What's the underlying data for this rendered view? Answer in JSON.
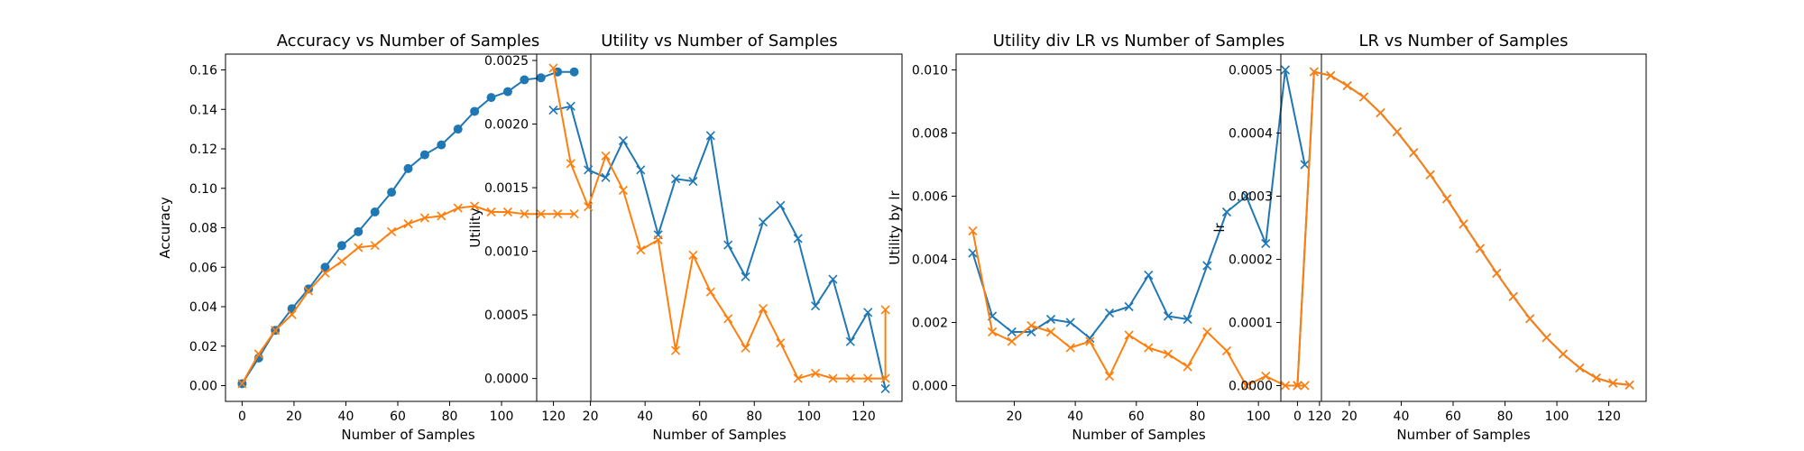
{
  "colors": {
    "blue": "#1f77b4",
    "orange": "#ff7f0e"
  },
  "chart_data": [
    {
      "type": "line",
      "title": "Accuracy vs Number of Samples",
      "xlabel": "Number of Samples",
      "ylabel": "Accuracy",
      "xlim": [
        -6.4,
        134.4
      ],
      "ylim": [
        -0.008,
        0.168
      ],
      "xticks": [
        0,
        20,
        40,
        60,
        80,
        100,
        120
      ],
      "yticks": [
        0.0,
        0.02,
        0.04,
        0.06,
        0.08,
        0.1,
        0.12,
        0.14,
        0.16
      ],
      "ytick_decimals": 2,
      "grid": false,
      "series": [
        {
          "color": "#1f77b4",
          "marker": "o",
          "x": [
            0,
            6.4,
            12.8,
            19.2,
            25.6,
            32,
            38.4,
            44.8,
            51.2,
            57.6,
            64,
            70.4,
            76.8,
            83.2,
            89.6,
            96,
            102.4,
            108.8,
            115.2,
            121.6,
            128
          ],
          "y": [
            0.001,
            0.014,
            0.028,
            0.039,
            0.049,
            0.06,
            0.071,
            0.078,
            0.088,
            0.098,
            0.11,
            0.117,
            0.122,
            0.13,
            0.139,
            0.146,
            0.149,
            0.155,
            0.156,
            0.159,
            0.159
          ]
        },
        {
          "color": "#ff7f0e",
          "marker": "x",
          "x": [
            0,
            6.4,
            12.8,
            19.2,
            25.6,
            32,
            38.4,
            44.8,
            51.2,
            57.6,
            64,
            70.4,
            76.8,
            83.2,
            89.6,
            96,
            102.4,
            108.8,
            115.2,
            121.6,
            128
          ],
          "y": [
            0.001,
            0.016,
            0.028,
            0.036,
            0.048,
            0.057,
            0.063,
            0.07,
            0.071,
            0.078,
            0.082,
            0.085,
            0.086,
            0.09,
            0.091,
            0.088,
            0.088,
            0.087,
            0.087,
            0.087,
            0.087
          ]
        }
      ]
    },
    {
      "type": "line",
      "title": "Utility vs Number of Samples",
      "xlabel": "Number of Samples",
      "ylabel": "Utility",
      "xlim": [
        0.32,
        134.08
      ],
      "ylim": [
        -0.00018,
        0.00255
      ],
      "xticks": [
        20,
        40,
        60,
        80,
        100,
        120
      ],
      "yticks": [
        0.0,
        0.0005,
        0.001,
        0.0015,
        0.002,
        0.0025
      ],
      "ytick_decimals": 4,
      "grid": false,
      "series": [
        {
          "color": "#1f77b4",
          "marker": "x",
          "x": [
            6.4,
            12.8,
            19.2,
            25.6,
            32,
            38.4,
            44.8,
            51.2,
            57.6,
            64,
            70.4,
            76.8,
            83.2,
            89.6,
            96,
            102.4,
            108.8,
            115.2,
            121.6,
            128
          ],
          "y": [
            0.00211,
            0.00214,
            0.00164,
            0.00158,
            0.00187,
            0.00164,
            0.00113,
            0.00157,
            0.00155,
            0.00191,
            0.00105,
            0.0008,
            0.00123,
            0.00136,
            0.0011,
            0.00057,
            0.00078,
            0.00029,
            0.00052,
            -8e-05
          ]
        },
        {
          "color": "#ff7f0e",
          "marker": "x",
          "x": [
            6.4,
            12.8,
            19.2,
            25.6,
            32,
            38.4,
            44.8,
            51.2,
            57.6,
            64,
            70.4,
            76.8,
            83.2,
            89.6,
            96,
            102.4,
            108.8,
            115.2,
            121.6,
            128,
            128
          ],
          "y": [
            0.00244,
            0.00169,
            0.00135,
            0.00175,
            0.00148,
            0.00101,
            0.00109,
            0.00022,
            0.00097,
            0.00068,
            0.00047,
            0.00024,
            0.00055,
            0.00028,
            0.0,
            4e-05,
            0.0,
            0.0,
            0.0,
            0.0,
            0.00054
          ]
        }
      ]
    },
    {
      "type": "line",
      "title": "Utility div LR vs Number of Samples",
      "xlabel": "Number of Samples",
      "ylabel": "Utility by lr",
      "xlim": [
        0.96,
        120.64
      ],
      "ylim": [
        -0.0005,
        0.0105
      ],
      "xticks": [
        20,
        40,
        60,
        80,
        100,
        120
      ],
      "yticks": [
        0.0,
        0.002,
        0.004,
        0.006,
        0.008,
        0.01
      ],
      "ytick_decimals": 3,
      "grid": false,
      "series": [
        {
          "color": "#1f77b4",
          "marker": "x",
          "x": [
            6.4,
            12.8,
            19.2,
            25.6,
            32,
            38.4,
            44.8,
            51.2,
            57.6,
            64,
            70.4,
            76.8,
            83.2,
            89.6,
            96,
            102.4,
            108.8,
            115.2
          ],
          "y": [
            0.0042,
            0.0022,
            0.0017,
            0.0017,
            0.0021,
            0.002,
            0.0015,
            0.0023,
            0.0025,
            0.0035,
            0.0022,
            0.0021,
            0.0038,
            0.0055,
            0.006,
            0.0045,
            0.01,
            0.007
          ]
        },
        {
          "color": "#ff7f0e",
          "marker": "x",
          "x": [
            6.4,
            12.8,
            19.2,
            25.6,
            32,
            38.4,
            44.8,
            51.2,
            57.6,
            64,
            70.4,
            76.8,
            83.2,
            89.6,
            96,
            102.4,
            108.8,
            115.2
          ],
          "y": [
            0.0049,
            0.0017,
            0.0014,
            0.0019,
            0.0017,
            0.0012,
            0.0014,
            0.0003,
            0.0016,
            0.0012,
            0.001,
            0.0006,
            0.0017,
            0.0011,
            0.0,
            0.0003,
            0.0,
            0.0
          ]
        }
      ]
    },
    {
      "type": "line",
      "title": "LR vs Number of Samples",
      "xlabel": "Number of Samples",
      "ylabel": "lr",
      "xlim": [
        -6.4,
        134.4
      ],
      "ylim": [
        -2.5e-05,
        0.000525
      ],
      "xticks": [
        0,
        20,
        40,
        60,
        80,
        100,
        120
      ],
      "yticks": [
        0.0,
        0.0001,
        0.0002,
        0.0003,
        0.0004,
        0.0005
      ],
      "ytick_decimals": 4,
      "grid": false,
      "series": [
        {
          "color": "#1f77b4",
          "marker": "x",
          "x": [
            0,
            6.4,
            12.8,
            19.2,
            25.6,
            32,
            38.4,
            44.8,
            51.2,
            57.6,
            64,
            70.4,
            76.8,
            83.2,
            89.6,
            96,
            102.4,
            108.8,
            115.2,
            121.6,
            128
          ],
          "y": [
            0.0,
            0.000497,
            0.000491,
            0.000475,
            0.000457,
            0.000432,
            0.000402,
            0.000369,
            0.000334,
            0.000296,
            0.000256,
            0.000217,
            0.000178,
            0.000141,
            0.000106,
            7.6e-05,
            5e-05,
            2.8e-05,
            1.2e-05,
            4e-06,
            1e-06
          ]
        },
        {
          "color": "#ff7f0e",
          "marker": "x",
          "x": [
            0,
            6.4,
            12.8,
            19.2,
            25.6,
            32,
            38.4,
            44.8,
            51.2,
            57.6,
            64,
            70.4,
            76.8,
            83.2,
            89.6,
            96,
            102.4,
            108.8,
            115.2,
            121.6,
            128
          ],
          "y": [
            0.0,
            0.000497,
            0.000491,
            0.000475,
            0.000457,
            0.000432,
            0.000402,
            0.000369,
            0.000334,
            0.000296,
            0.000256,
            0.000217,
            0.000178,
            0.000141,
            0.000106,
            7.6e-05,
            5e-05,
            2.8e-05,
            1.2e-05,
            4e-06,
            1e-06
          ]
        }
      ]
    }
  ]
}
